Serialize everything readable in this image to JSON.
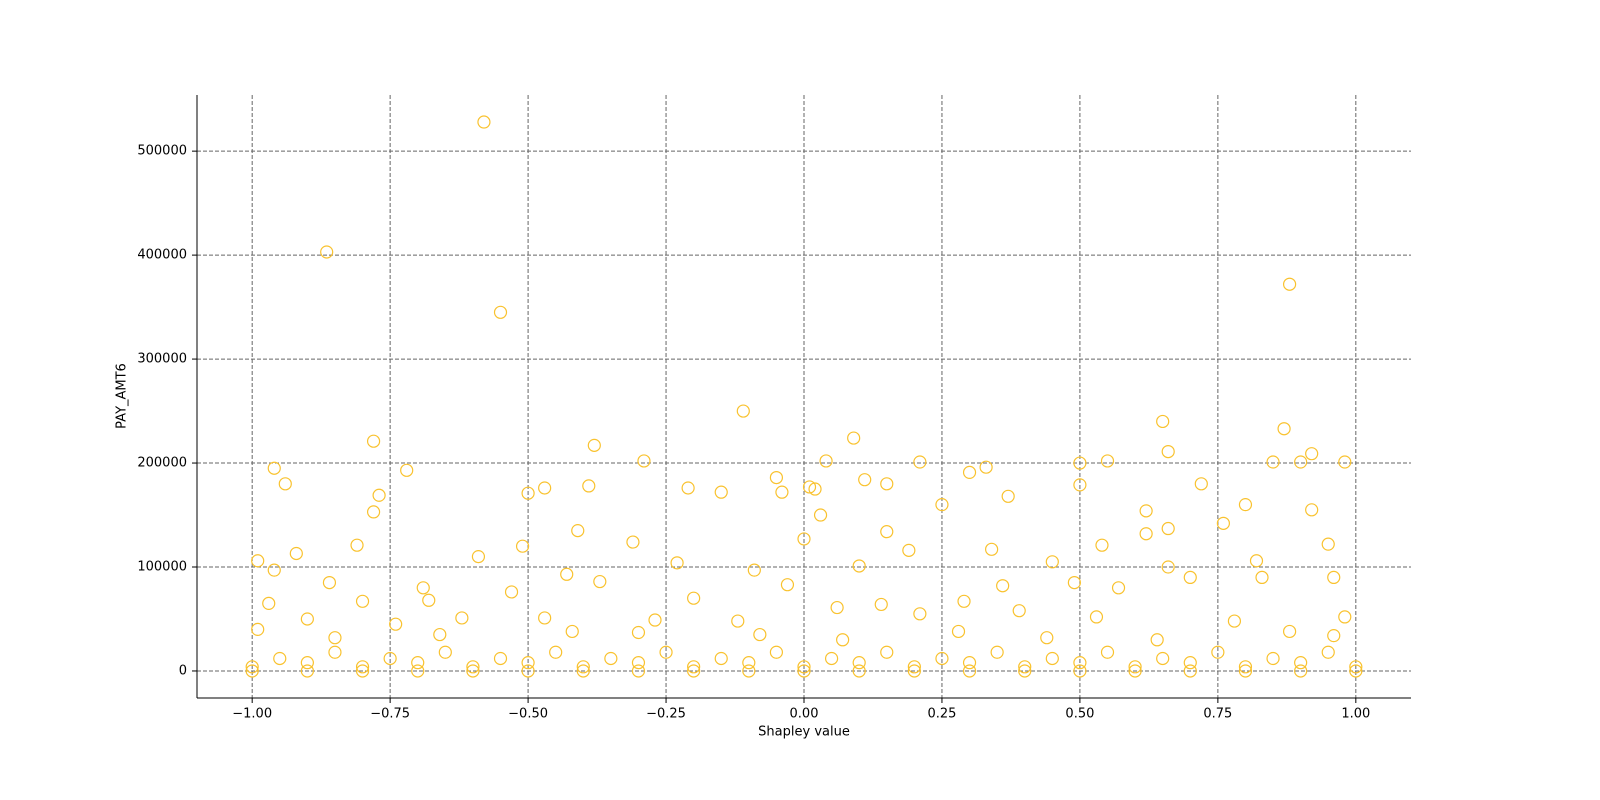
{
  "chart_data": {
    "type": "scatter",
    "xlabel": "Shapley value",
    "ylabel": "PAY_AMT6",
    "color": "#f9c22e",
    "grid": true,
    "xlim": [
      -1.1,
      1.1
    ],
    "ylim": [
      -26000,
      554000
    ],
    "xticks": [
      {
        "value": -1,
        "label": "−1.00"
      },
      {
        "value": -0.75,
        "label": "−0.75"
      },
      {
        "value": -0.5,
        "label": "−0.50"
      },
      {
        "value": -0.25,
        "label": "−0.25"
      },
      {
        "value": 0,
        "label": "0.00"
      },
      {
        "value": 0.25,
        "label": "0.25"
      },
      {
        "value": 0.5,
        "label": "0.50"
      },
      {
        "value": 0.75,
        "label": "0.75"
      },
      {
        "value": 1,
        "label": "1.00"
      }
    ],
    "yticks": [
      0,
      100000,
      200000,
      300000,
      400000,
      500000
    ],
    "x": [
      -0.865,
      -0.58,
      -0.55,
      0.88,
      -0.11,
      0.09,
      -0.78,
      -0.38,
      0.65,
      0.66,
      0.87,
      -0.96,
      -0.72,
      -0.29,
      0.04,
      0.21,
      0.5,
      0.55,
      0.85,
      0.9,
      0.98,
      0.92,
      -0.94,
      -0.77,
      -0.78,
      -0.5,
      -0.47,
      -0.39,
      -0.21,
      -0.15,
      -0.05,
      -0.04,
      0.01,
      0.02,
      0.11,
      0.15,
      0.3,
      0.33,
      0.37,
      0.5,
      0.72,
      0.25,
      0.8,
      0.92,
      0.62,
      0.03,
      -0.41,
      0.15,
      0.62,
      0.66,
      0.76,
      -0.31,
      -0.51,
      -0.81,
      0.0,
      0.54,
      0.95,
      0.34,
      0.19,
      -0.92,
      -0.99,
      -0.96,
      -0.59,
      -0.23,
      -0.09,
      0.1,
      0.45,
      0.82,
      0.66,
      -0.86,
      -0.69,
      -0.37,
      -0.03,
      0.36,
      0.49,
      0.7,
      0.96,
      -0.97,
      -0.8,
      -0.68,
      -0.53,
      -0.43,
      -0.2,
      0.14,
      0.29,
      0.57,
      0.83,
      -0.9,
      -0.74,
      -0.62,
      -0.47,
      -0.27,
      -0.12,
      0.06,
      0.21,
      0.39,
      0.53,
      0.78,
      0.98,
      -0.99,
      -0.85,
      -0.66,
      -0.42,
      -0.3,
      -0.08,
      0.07,
      0.28,
      0.44,
      0.64,
      0.88,
      0.96,
      -1.0,
      -0.9,
      -0.8,
      -0.7,
      -0.6,
      -0.5,
      -0.4,
      -0.3,
      -0.2,
      -0.1,
      0.0,
      0.1,
      0.2,
      0.3,
      0.4,
      0.5,
      0.6,
      0.7,
      0.8,
      0.9,
      1.0,
      -0.95,
      -0.85,
      -0.75,
      -0.65,
      -0.55,
      -0.45,
      -0.35,
      -0.25,
      -0.15,
      -0.05,
      0.05,
      0.15,
      0.25,
      0.35,
      0.45,
      0.55,
      0.65,
      0.75,
      0.85,
      0.95,
      -1.0,
      -0.9,
      -0.8,
      -0.7,
      -0.6,
      -0.5,
      -0.4,
      -0.3,
      -0.2,
      -0.1,
      0.0,
      0.1,
      0.2,
      0.3,
      0.4,
      0.5,
      0.6,
      0.7,
      0.8,
      0.9,
      1.0
    ],
    "y": [
      403000,
      528000,
      345000,
      372000,
      250000,
      224000,
      221000,
      217000,
      240000,
      211000,
      233000,
      195000,
      193000,
      202000,
      202000,
      201000,
      200000,
      202000,
      201000,
      201000,
      201000,
      209000,
      180000,
      169000,
      153000,
      171000,
      176000,
      178000,
      176000,
      172000,
      186000,
      172000,
      177000,
      175000,
      184000,
      180000,
      191000,
      196000,
      168000,
      179000,
      180000,
      160000,
      160000,
      155000,
      154000,
      150000,
      135000,
      134000,
      132000,
      137000,
      142000,
      124000,
      120000,
      121000,
      127000,
      121000,
      122000,
      117000,
      116000,
      113000,
      106000,
      97000,
      110000,
      104000,
      97000,
      101000,
      105000,
      106000,
      100000,
      85000,
      80000,
      86000,
      83000,
      82000,
      85000,
      90000,
      90000,
      65000,
      67000,
      68000,
      76000,
      93000,
      70000,
      64000,
      67000,
      80000,
      90000,
      50000,
      45000,
      51000,
      51000,
      49000,
      48000,
      61000,
      55000,
      58000,
      52000,
      48000,
      52000,
      40000,
      32000,
      35000,
      38000,
      37000,
      35000,
      30000,
      38000,
      32000,
      30000,
      38000,
      34000,
      4000,
      8000,
      4000,
      8000,
      4000,
      8000,
      4000,
      8000,
      4000,
      8000,
      4000,
      8000,
      4000,
      8000,
      4000,
      8000,
      4000,
      8000,
      4000,
      8000,
      4000,
      12000,
      18000,
      12000,
      18000,
      12000,
      18000,
      12000,
      18000,
      12000,
      18000,
      12000,
      18000,
      12000,
      18000,
      12000,
      18000,
      12000,
      18000,
      12000,
      18000,
      0,
      0,
      0,
      0,
      0,
      0,
      0,
      0,
      0,
      0,
      0,
      0,
      0,
      0,
      0,
      0,
      0,
      0,
      0,
      0,
      0
    ]
  }
}
